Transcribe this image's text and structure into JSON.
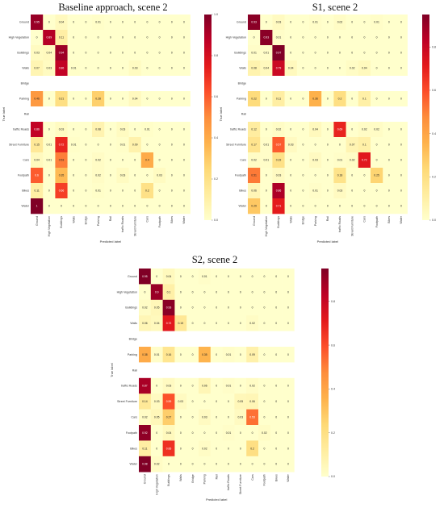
{
  "chart_data": [
    {
      "type": "heatmap",
      "title": "Baseline approach, scene 2",
      "xlabel": "Predicted label",
      "ylabel": "True label",
      "labels": [
        "Ground",
        "High Vegetation",
        "Buildings",
        "Walls",
        "Bridge",
        "Parking",
        "Rail",
        "traffic Roads",
        "Street Furniture",
        "Cars",
        "Footpath",
        "Bikes",
        "Water"
      ],
      "colorbar_ticks": [
        "1.0",
        "0.8",
        "0.6",
        "0.4",
        "0.2",
        "0.0"
      ],
      "vmax": 1.0,
      "matrix": [
        [
          0.95,
          0,
          0.04,
          0,
          0,
          0.01,
          0,
          0,
          0,
          0,
          0,
          0,
          0
        ],
        [
          0,
          0.89,
          0.11,
          0,
          0,
          0,
          0,
          0,
          0,
          0,
          0,
          0,
          0
        ],
        [
          0.03,
          0.04,
          0.94,
          0,
          0,
          0,
          0,
          0,
          0,
          0,
          0,
          0,
          0
        ],
        [
          0.07,
          0.03,
          0.86,
          0.01,
          0,
          0,
          0,
          0,
          0.03,
          0,
          0,
          0,
          0
        ],
        [
          null,
          null,
          null,
          null,
          null,
          null,
          null,
          null,
          null,
          null,
          null,
          null,
          null
        ],
        [
          0.46,
          0,
          0.21,
          0,
          0,
          0.28,
          0,
          0,
          0.04,
          0,
          0,
          0,
          0
        ],
        [
          null,
          null,
          null,
          null,
          null,
          null,
          null,
          null,
          null,
          null,
          null,
          null,
          null
        ],
        [
          0.86,
          0,
          0.03,
          0,
          0,
          0.08,
          0,
          0.03,
          0,
          0.01,
          0,
          0,
          0
        ],
        [
          0.15,
          0.01,
          0.72,
          0.01,
          0,
          0,
          0,
          0.01,
          0.09,
          0,
          0,
          0,
          0
        ],
        [
          0.04,
          0.01,
          0.53,
          0,
          0,
          0.02,
          0,
          0,
          0,
          0.4,
          0,
          0,
          0
        ],
        [
          0.6,
          0,
          0.35,
          0,
          0,
          0.02,
          0,
          0.03,
          0,
          0,
          0.03,
          0,
          0
        ],
        [
          0.11,
          0,
          0.66,
          0,
          0,
          0.01,
          0,
          0,
          0,
          0.2,
          0,
          0,
          0
        ],
        [
          1,
          0,
          0,
          0,
          0,
          0,
          0,
          0,
          0,
          0,
          0,
          0,
          0
        ]
      ]
    },
    {
      "type": "heatmap",
      "title": "S1, scene 2",
      "xlabel": "Predicted label",
      "ylabel": "True label",
      "labels": [
        "Ground",
        "High Vegetation",
        "Buildings",
        "Walls",
        "Bridge",
        "Parking",
        "Rail",
        "traffic Roads",
        "Street Furniture",
        "Cars",
        "Footpath",
        "Bikes",
        "Water"
      ],
      "colorbar_ticks": [
        "0.8",
        "0.6",
        "0.4",
        "0.2",
        "0.0"
      ],
      "vmax": 0.95,
      "matrix": [
        [
          0.93,
          0,
          0.03,
          0,
          0,
          0.01,
          0,
          0.02,
          0,
          0,
          0.01,
          0,
          0
        ],
        [
          0,
          0.93,
          0.01,
          0,
          0,
          0,
          0,
          0,
          0,
          0,
          0,
          0,
          0
        ],
        [
          0.01,
          0.01,
          0.97,
          0,
          0,
          0,
          0,
          0,
          0,
          0,
          0,
          0,
          0
        ],
        [
          0.08,
          0.04,
          0.79,
          0.04,
          0,
          0,
          0,
          0,
          0.02,
          0.04,
          0,
          0,
          0
        ],
        [
          null,
          null,
          null,
          null,
          null,
          null,
          null,
          null,
          null,
          null,
          null,
          null,
          null
        ],
        [
          0.22,
          0,
          0.11,
          0,
          0,
          0.36,
          0,
          0.2,
          0,
          0.1,
          0,
          0,
          0
        ],
        [
          null,
          null,
          null,
          null,
          null,
          null,
          null,
          null,
          null,
          null,
          null,
          null,
          null
        ],
        [
          0.12,
          0,
          0.02,
          0,
          0,
          0.04,
          0,
          0.69,
          0,
          0.02,
          0.02,
          0,
          0
        ],
        [
          0.17,
          0.01,
          0.57,
          0.03,
          0,
          0,
          0,
          0,
          0.07,
          0.1,
          0,
          0,
          0
        ],
        [
          0.02,
          0.01,
          0.19,
          0,
          0,
          0.03,
          0,
          0.01,
          0.02,
          0.72,
          0,
          0,
          0
        ],
        [
          0.51,
          0,
          0.03,
          0,
          0,
          0,
          0,
          0.18,
          0,
          0,
          0.25,
          0,
          0
        ],
        [
          0.06,
          0,
          0.86,
          0,
          0,
          0.01,
          0,
          0.03,
          0,
          0,
          0,
          0,
          0
        ],
        [
          0.29,
          0,
          0.71,
          0,
          0,
          0,
          0,
          0,
          0,
          0,
          0,
          0,
          0
        ]
      ]
    },
    {
      "type": "heatmap",
      "title": "S2, scene 2",
      "xlabel": "Predicted label",
      "ylabel": "True label",
      "labels": [
        "Ground",
        "High Vegetation",
        "Buildings",
        "Walls",
        "Bridge",
        "Parking",
        "Rail",
        "traffic Roads",
        "Street Furniture",
        "Cars",
        "Footpath",
        "Bikes",
        "Water"
      ],
      "colorbar_ticks": [
        "0.8",
        "0.6",
        "0.4",
        "0.2",
        "0.0"
      ],
      "vmax": 0.95,
      "matrix": [
        [
          0.95,
          0,
          0.04,
          0,
          0,
          0.01,
          0,
          0,
          0,
          0,
          0,
          0,
          0
        ],
        [
          0,
          0.9,
          0.1,
          0,
          0,
          0,
          0,
          0,
          0,
          0,
          0,
          0,
          0
        ],
        [
          0.02,
          0.05,
          0.93,
          0,
          0,
          0,
          0,
          0,
          0,
          0,
          0,
          0,
          0
        ],
        [
          0.06,
          0.04,
          0.72,
          0.15,
          0,
          0,
          0,
          0,
          0,
          0.02,
          0,
          0,
          0
        ],
        [
          null,
          null,
          null,
          null,
          null,
          null,
          null,
          null,
          null,
          null,
          null,
          null,
          null
        ],
        [
          0.38,
          0.01,
          0.16,
          0,
          0,
          0.35,
          0,
          0.01,
          0,
          0.09,
          0,
          0,
          0
        ],
        [
          null,
          null,
          null,
          null,
          null,
          null,
          null,
          null,
          null,
          null,
          null,
          null,
          null
        ],
        [
          0.87,
          0,
          0.03,
          0,
          0,
          0.06,
          0,
          0.01,
          0,
          0.02,
          0,
          0,
          0
        ],
        [
          0.14,
          0.03,
          0.59,
          0.03,
          0,
          0,
          0,
          0,
          0.05,
          0.06,
          0,
          0,
          0
        ],
        [
          0.02,
          0.05,
          0.27,
          0,
          0,
          0.03,
          0,
          0,
          0.03,
          0.53,
          0,
          0,
          0
        ],
        [
          0.92,
          0,
          0.04,
          0,
          0,
          0,
          0,
          0.01,
          0,
          0,
          0.02,
          0,
          0
        ],
        [
          0.11,
          0,
          0.66,
          0,
          0,
          0.02,
          0,
          0,
          0,
          0.2,
          0,
          0,
          0
        ],
        [
          0.98,
          0.02,
          0,
          0,
          0,
          0,
          0,
          0,
          0,
          0,
          0,
          0,
          0
        ]
      ]
    }
  ]
}
